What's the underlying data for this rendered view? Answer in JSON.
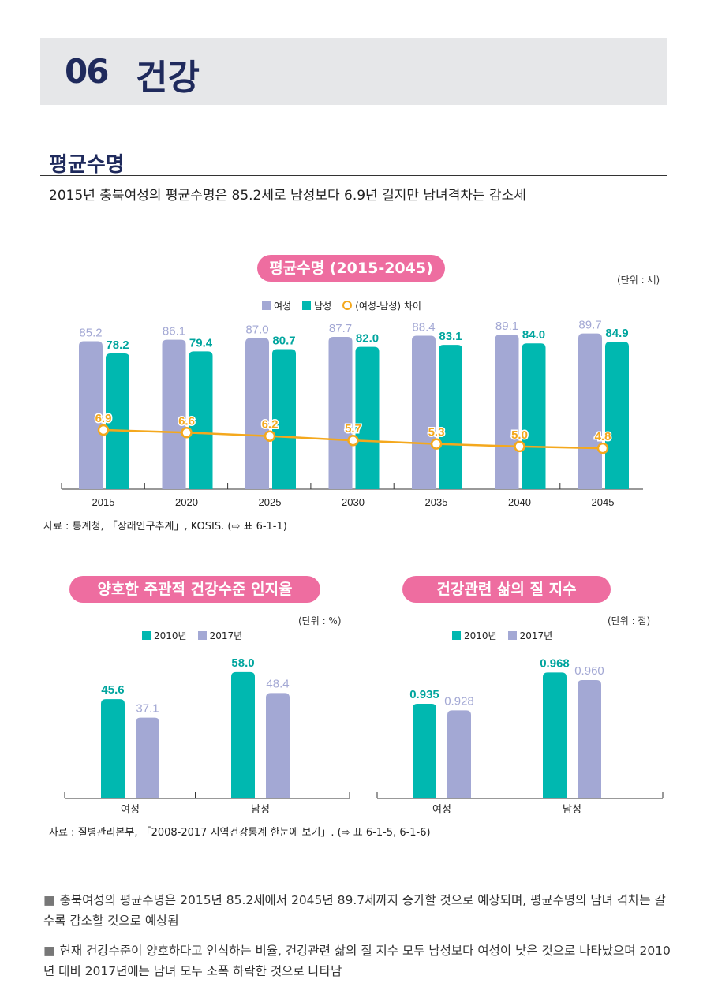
{
  "header": {
    "chapter_number": "06",
    "chapter_title": "건강"
  },
  "section": {
    "title": "평균수명",
    "subtitle": "2015년 충북여성의 평균수명은 85.2세로 남성보다 6.9년 길지만 남녀격차는 감소세"
  },
  "colors": {
    "female": "#a3a8d4",
    "male": "#00b8b0",
    "gap": "#f4a81d",
    "pill": "#ee6da0",
    "navy": "#1f2a5c"
  },
  "chart_data": [
    {
      "type": "bar",
      "title": "평균수명 (2015-2045)",
      "unit": "(단위 : 세)",
      "categories": [
        "2015",
        "2020",
        "2025",
        "2030",
        "2035",
        "2040",
        "2045"
      ],
      "series": [
        {
          "name": "여성",
          "values": [
            85.2,
            86.1,
            87.0,
            87.7,
            88.4,
            89.1,
            89.7
          ]
        },
        {
          "name": "남성",
          "values": [
            78.2,
            79.4,
            80.7,
            82.0,
            83.1,
            84.0,
            84.9
          ]
        },
        {
          "name": "(여성-남성) 차이",
          "type": "line",
          "values": [
            6.9,
            6.6,
            6.2,
            5.7,
            5.3,
            5.0,
            4.8
          ]
        }
      ],
      "legend": "top",
      "source": "자료 : 통계청, 「장래인구추계」, KOSIS. (⇨ 표 6-1-1)"
    },
    {
      "type": "bar",
      "title": "양호한 주관적 건강수준 인지율",
      "unit": "(단위 : %)",
      "categories": [
        "여성",
        "남성"
      ],
      "series": [
        {
          "name": "2010년",
          "values": [
            45.6,
            58.0
          ]
        },
        {
          "name": "2017년",
          "values": [
            37.1,
            48.4
          ]
        }
      ],
      "legend": "top"
    },
    {
      "type": "bar",
      "title": "건강관련 삶의 질 지수",
      "unit": "(단위 : 점)",
      "categories": [
        "여성",
        "남성"
      ],
      "series": [
        {
          "name": "2010년",
          "values": [
            0.935,
            0.968
          ]
        },
        {
          "name": "2017년",
          "values": [
            0.928,
            0.96
          ]
        }
      ],
      "legend": "top",
      "source": "자료 : 질병관리본부, 「2008-2017 지역건강통계 한눈에 보기」. (⇨ 표 6-1-5, 6-1-6)"
    }
  ],
  "bullets": [
    "충북여성의 평균수명은 2015년 85.2세에서 2045년 89.7세까지 증가할 것으로 예상되며, 평균수명의 남녀 격차는 갈수록 감소할 것으로 예상됨",
    "현재 건강수준이 양호하다고 인식하는 비율, 건강관련 삶의 질 지수 모두 남성보다 여성이 낮은 것으로 나타났으며 2010년 대비 2017년에는 남녀 모두 소폭 하락한 것으로 나타남"
  ]
}
